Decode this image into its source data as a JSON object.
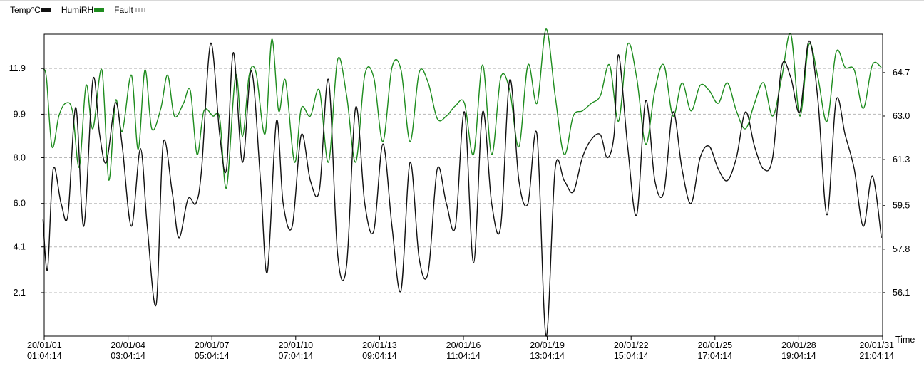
{
  "legend": {
    "temp_label": "Temp°C",
    "humi_label": "HumiRH",
    "fault_label": "Fault"
  },
  "colors": {
    "temp": "#111111",
    "humi": "#1e8c1e",
    "grid": "#b8b8b8"
  },
  "chart_data": {
    "type": "line",
    "xlabel": "Time",
    "x_ticks": [
      [
        "20/01/01",
        "01:04:14"
      ],
      [
        "20/01/04",
        "03:04:14"
      ],
      [
        "20/01/07",
        "05:04:14"
      ],
      [
        "20/01/10",
        "07:04:14"
      ],
      [
        "20/01/13",
        "09:04:14"
      ],
      [
        "20/01/16",
        "11:04:14"
      ],
      [
        "20/01/19",
        "13:04:14"
      ],
      [
        "20/01/22",
        "15:04:14"
      ],
      [
        "20/01/25",
        "17:04:14"
      ],
      [
        "20/01/28",
        "19:04:14"
      ],
      [
        "20/01/31",
        "21:04:14"
      ]
    ],
    "x_range": [
      "2020-01-01 01:04:14",
      "2020-01-31 21:04:14"
    ],
    "y_left": {
      "ticks": [
        "2.1",
        "4.1",
        "6.0",
        "8.0",
        "9.9",
        "11.9"
      ],
      "range": [
        0.2,
        13.4
      ]
    },
    "y_right": {
      "ticks": [
        "56.1",
        "57.8",
        "59.5",
        "61.3",
        "63.0",
        "64.7"
      ],
      "range": [
        54.4,
        66.2
      ]
    },
    "grid": "horizontal dashed",
    "legend_position": "top-left",
    "series": [
      {
        "name": "Temp°C",
        "axis": "left",
        "x": [
          "01-01 00:00",
          "01-01 04:00",
          "01-01 09:00",
          "01-01 16:00",
          "01-01 22:00",
          "01-02 05:00",
          "01-02 12:00",
          "01-02 20:00",
          "01-03 02:00",
          "01-03 08:00",
          "01-03 16:00",
          "01-03 22:00",
          "01-04 06:00",
          "01-04 14:00",
          "01-04 20:00",
          "01-05 04:00",
          "01-05 10:00",
          "01-05 18:00",
          "01-06 00:00",
          "01-06 08:00",
          "01-06 15:00",
          "01-06 20:00",
          "01-07 04:00",
          "01-07 12:00",
          "01-07 18:00",
          "01-08 00:00",
          "01-08 08:00",
          "01-08 16:00",
          "01-09 00:00",
          "01-09 06:00",
          "01-09 14:00",
          "01-09 20:00",
          "01-10 04:00",
          "01-10 12:00",
          "01-10 20:00",
          "01-11 04:00",
          "01-11 12:00",
          "01-11 20:00",
          "01-12 04:00",
          "01-12 12:00",
          "01-12 20:00",
          "01-13 04:00",
          "01-13 12:00",
          "01-13 20:00",
          "01-14 04:00",
          "01-14 12:00",
          "01-14 20:00",
          "01-15 04:00",
          "01-15 12:00",
          "01-15 20:00",
          "01-16 04:00",
          "01-16 12:00",
          "01-16 20:00",
          "01-17 04:00",
          "01-17 12:00",
          "01-17 20:00",
          "01-18 04:00",
          "01-18 12:00",
          "01-18 20:00",
          "01-19 04:00",
          "01-19 12:00",
          "01-19 20:00",
          "01-20 04:00",
          "01-20 12:00",
          "01-20 20:00",
          "01-21 04:00",
          "01-21 12:00",
          "01-21 18:00",
          "01-22 00:00",
          "01-22 04:00",
          "01-22 12:00",
          "01-22 20:00",
          "01-23 04:00",
          "01-23 12:00",
          "01-23 20:00",
          "01-24 04:00",
          "01-24 12:00",
          "01-24 20:00",
          "01-25 04:00",
          "01-25 12:00",
          "01-25 20:00",
          "01-26 04:00",
          "01-26 12:00",
          "01-26 20:00",
          "01-27 04:00",
          "01-27 12:00",
          "01-27 20:00",
          "01-28 04:00",
          "01-28 12:00",
          "01-28 20:00",
          "01-29 04:00",
          "01-29 12:00",
          "01-29 20:00",
          "01-30 04:00",
          "01-30 12:00",
          "01-30 20:00",
          "01-31 04:00",
          "01-31 12:00",
          "01-31 20:00"
        ],
        "values": [
          5.3,
          3.1,
          7.5,
          6.0,
          5.5,
          10.2,
          5.0,
          11.4,
          9.0,
          7.8,
          10.4,
          8.5,
          5.0,
          8.4,
          5.0,
          1.6,
          8.6,
          6.5,
          4.5,
          6.2,
          6.0,
          7.5,
          13.0,
          9.0,
          7.5,
          12.6,
          7.8,
          11.8,
          7.0,
          3.0,
          9.6,
          6.0,
          5.0,
          9.0,
          7.0,
          6.6,
          11.4,
          3.8,
          3.3,
          10.2,
          6.0,
          4.8,
          8.6,
          5.0,
          2.2,
          7.8,
          3.6,
          3.0,
          7.5,
          6.0,
          5.0,
          10.0,
          3.4,
          10.0,
          6.0,
          5.0,
          11.4,
          7.0,
          6.0,
          9.0,
          0.2,
          7.5,
          7.0,
          6.5,
          8.0,
          8.8,
          9.0,
          8.0,
          9.0,
          12.5,
          8.5,
          5.5,
          10.5,
          7.0,
          6.5,
          10.0,
          7.5,
          6.0,
          8.0,
          8.5,
          7.5,
          7.0,
          8.0,
          10.0,
          8.5,
          7.5,
          8.0,
          12.0,
          11.5,
          10.0,
          13.1,
          10.5,
          5.5,
          10.5,
          9.0,
          7.5,
          5.0,
          7.2,
          4.5
        ]
      },
      {
        "name": "HumiRH",
        "axis": "right",
        "x": [
          "01-01 00:00",
          "01-01 03:00",
          "01-01 08:00",
          "01-01 14:00",
          "01-01 20:00",
          "01-02 02:00",
          "01-02 08:00",
          "01-02 14:00",
          "01-02 20:00",
          "01-03 04:00",
          "01-03 10:00",
          "01-03 16:00",
          "01-03 22:00",
          "01-04 06:00",
          "01-04 12:00",
          "01-04 18:00",
          "01-05 00:00",
          "01-05 08:00",
          "01-05 14:00",
          "01-05 20:00",
          "01-06 04:00",
          "01-06 10:00",
          "01-06 16:00",
          "01-06 22:00",
          "01-07 06:00",
          "01-07 12:00",
          "01-07 18:00",
          "01-08 02:00",
          "01-08 08:00",
          "01-08 14:00",
          "01-08 20:00",
          "01-09 04:00",
          "01-09 10:00",
          "01-09 16:00",
          "01-09 22:00",
          "01-10 06:00",
          "01-10 12:00",
          "01-10 20:00",
          "01-11 04:00",
          "01-11 12:00",
          "01-11 20:00",
          "01-12 04:00",
          "01-12 12:00",
          "01-12 20:00",
          "01-13 04:00",
          "01-13 12:00",
          "01-13 20:00",
          "01-14 04:00",
          "01-14 12:00",
          "01-14 20:00",
          "01-15 04:00",
          "01-15 12:00",
          "01-15 20:00",
          "01-16 04:00",
          "01-16 12:00",
          "01-16 20:00",
          "01-17 04:00",
          "01-17 12:00",
          "01-17 20:00",
          "01-18 04:00",
          "01-18 12:00",
          "01-18 20:00",
          "01-19 04:00",
          "01-19 12:00",
          "01-19 20:00",
          "01-20 04:00",
          "01-20 12:00",
          "01-20 20:00",
          "01-21 04:00",
          "01-21 12:00",
          "01-21 20:00",
          "01-22 04:00",
          "01-22 12:00",
          "01-22 20:00",
          "01-23 04:00",
          "01-23 12:00",
          "01-23 20:00",
          "01-24 04:00",
          "01-24 12:00",
          "01-24 20:00",
          "01-25 04:00",
          "01-25 12:00",
          "01-25 20:00",
          "01-26 04:00",
          "01-26 12:00",
          "01-26 20:00",
          "01-27 04:00",
          "01-27 12:00",
          "01-27 20:00",
          "01-28 04:00",
          "01-28 12:00",
          "01-28 20:00",
          "01-29 04:00",
          "01-29 12:00",
          "01-29 20:00",
          "01-30 04:00",
          "01-30 12:00",
          "01-30 20:00",
          "01-31 04:00",
          "01-31 12:00",
          "01-31 20:00"
        ],
        "values": [
          64.8,
          64.5,
          61.8,
          63.0,
          63.5,
          63.2,
          61.0,
          64.2,
          62.5,
          64.8,
          60.5,
          63.6,
          62.4,
          64.6,
          61.7,
          64.8,
          62.5,
          63.3,
          64.6,
          63.0,
          63.5,
          64.0,
          61.5,
          63.2,
          63.0,
          62.9,
          60.2,
          64.6,
          62.2,
          64.6,
          64.7,
          62.3,
          66.0,
          63.2,
          64.4,
          61.2,
          63.3,
          63.0,
          64.0,
          61.2,
          65.2,
          63.8,
          61.2,
          64.6,
          64.5,
          62.0,
          64.9,
          64.8,
          62.0,
          64.7,
          64.3,
          62.9,
          63.0,
          63.4,
          63.5,
          61.5,
          65.0,
          61.5,
          64.5,
          64.0,
          61.8,
          65.0,
          63.5,
          66.4,
          63.8,
          61.5,
          63.0,
          63.2,
          63.5,
          63.8,
          65.0,
          62.8,
          65.8,
          64.5,
          61.9,
          64.0,
          65.0,
          63.0,
          64.3,
          63.2,
          64.2,
          64.0,
          63.5,
          64.3,
          63.2,
          62.5,
          63.5,
          64.3,
          63.0,
          64.5,
          66.2,
          63.0,
          65.8,
          64.5,
          62.8,
          65.5,
          64.9,
          64.8,
          63.3,
          65.0,
          64.9
        ]
      }
    ]
  }
}
